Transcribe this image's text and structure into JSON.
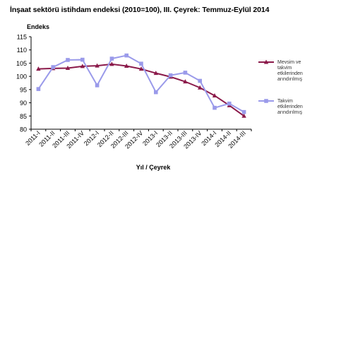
{
  "chart_data": {
    "type": "line",
    "title": "İnşaat sektörü istihdam endeksi (2010=100), III. Çeyrek: Temmuz-Eylül 2014",
    "ylabel": "Endeks",
    "xlabel": "Yıl / Çeyrek",
    "ylim": [
      80,
      115
    ],
    "yticks": [
      80,
      85,
      90,
      95,
      100,
      105,
      110,
      115
    ],
    "categories": [
      "2011-I",
      "2011-II",
      "2011-III",
      "2011-IV",
      "2012-I",
      "2012-II",
      "2012-III",
      "2012-IV",
      "2013-I",
      "2013-II",
      "2013-III",
      "2013-IV",
      "2014-I",
      "2014-II",
      "2014-III"
    ],
    "series": [
      {
        "name_lines": [
          "Mevsim ve",
          "takvim",
          "etkilerinden",
          "arındırılmış"
        ],
        "color": "#8b1a4a",
        "marker": "triangle",
        "values": [
          102.8,
          103.0,
          103.1,
          103.8,
          104.0,
          104.6,
          103.9,
          102.8,
          101.2,
          99.8,
          98.0,
          95.7,
          92.7,
          89.0,
          85.0
        ]
      },
      {
        "name_lines": [
          "Takvim",
          "etkilerinden",
          "arındırılmış"
        ],
        "color": "#9a9aea",
        "marker": "square",
        "values": [
          95.2,
          103.5,
          106.2,
          106.3,
          96.6,
          106.7,
          107.9,
          104.8,
          94.0,
          100.4,
          101.4,
          98.3,
          88.1,
          89.7,
          86.5
        ]
      }
    ],
    "grid": false,
    "legend_position": "right"
  }
}
